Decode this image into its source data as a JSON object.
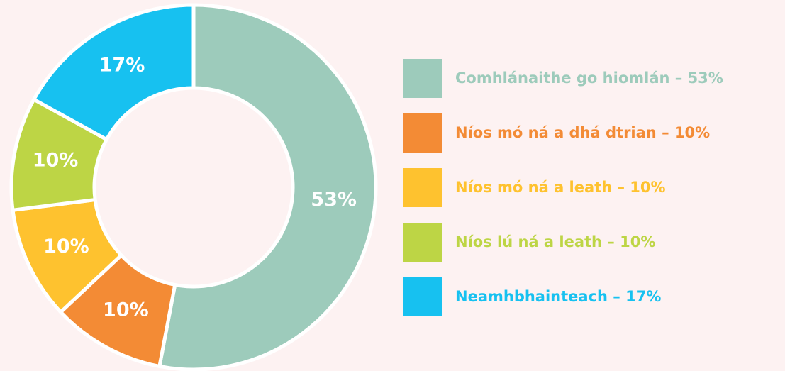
{
  "chart_data": {
    "type": "donut",
    "categories": [
      "Comhlánaithe go hiomlán – 53%",
      "Níos mó ná a dhá dtrian – 10%",
      "Níos mó ná a leath – 10%",
      "Níos lú ná a leath – 10%",
      "Neamhbhainteach – 17%"
    ],
    "values": [
      53,
      10,
      10,
      10,
      17
    ],
    "value_labels": [
      "53%",
      "10%",
      "10%",
      "10%",
      "17%"
    ],
    "colors": [
      "#9dcbbb",
      "#f38b35",
      "#fec22f",
      "#bdd545",
      "#17c1f0"
    ]
  }
}
